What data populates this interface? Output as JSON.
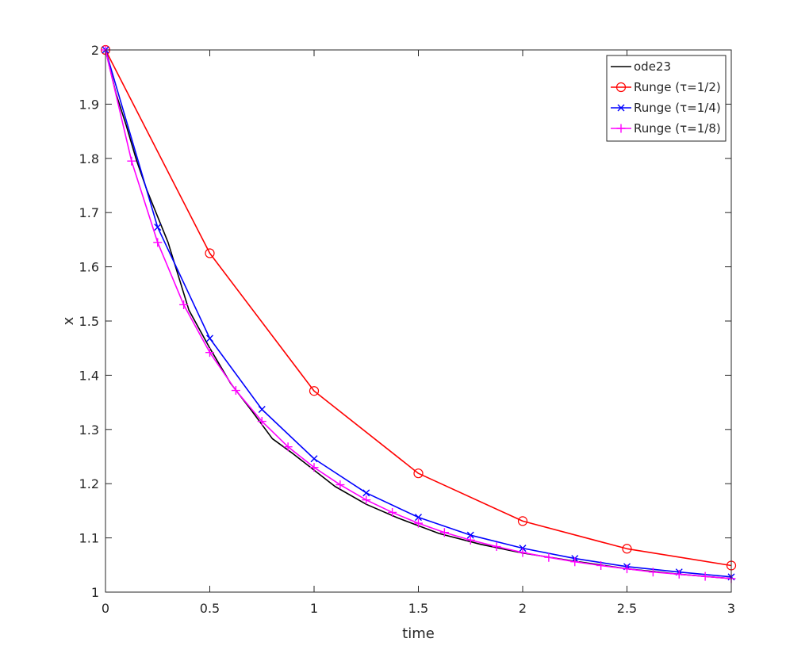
{
  "chart_data": {
    "type": "line",
    "title": "",
    "xlabel": "time",
    "ylabel": "x",
    "xlim": [
      0,
      3
    ],
    "ylim": [
      1,
      2
    ],
    "xticks": [
      0,
      0.5,
      1,
      1.5,
      2,
      2.5,
      3
    ],
    "xtick_labels": [
      "0",
      "0.5",
      "1",
      "1.5",
      "2",
      "2.5",
      "3"
    ],
    "yticks": [
      1,
      1.1,
      1.2,
      1.3,
      1.4,
      1.5,
      1.6,
      1.7,
      1.8,
      1.9,
      2
    ],
    "ytick_labels": [
      "1",
      "1.1",
      "1.2",
      "1.3",
      "1.4",
      "1.5",
      "1.6",
      "1.7",
      "1.8",
      "1.9",
      "2"
    ],
    "grid": false,
    "box": true,
    "legend_position": "top-right",
    "series": [
      {
        "name": "ode23",
        "color": "#000000",
        "marker": "none",
        "x": [
          0,
          0.05,
          0.1,
          0.15,
          0.2,
          0.3,
          0.4,
          0.5,
          0.6,
          0.7,
          0.8,
          0.9,
          1.0,
          1.1,
          1.25,
          1.4,
          1.6,
          1.8,
          2.0,
          2.25,
          2.5,
          2.75,
          3.0
        ],
        "values": [
          2.0,
          1.92,
          1.86,
          1.795,
          1.74,
          1.645,
          1.52,
          1.45,
          1.385,
          1.335,
          1.283,
          1.255,
          1.225,
          1.195,
          1.162,
          1.137,
          1.108,
          1.088,
          1.072,
          1.057,
          1.043,
          1.033,
          1.025
        ]
      },
      {
        "name": "Runge (τ=1/2)",
        "color": "#ff0000",
        "marker": "circle",
        "x": [
          0,
          0.5,
          1.0,
          1.5,
          2.0,
          2.5,
          3.0
        ],
        "values": [
          2.0,
          1.625,
          1.371,
          1.219,
          1.131,
          1.08,
          1.049
        ]
      },
      {
        "name": "Runge (τ=1/4)",
        "color": "#0000ff",
        "marker": "x",
        "x": [
          0,
          0.25,
          0.5,
          0.75,
          1.0,
          1.25,
          1.5,
          1.75,
          2.0,
          2.25,
          2.5,
          2.75,
          3.0
        ],
        "values": [
          2.0,
          1.673,
          1.468,
          1.337,
          1.246,
          1.183,
          1.138,
          1.105,
          1.081,
          1.062,
          1.047,
          1.037,
          1.028
        ]
      },
      {
        "name": "Runge (τ=1/8)",
        "color": "#ff00ff",
        "marker": "plus",
        "x": [
          0,
          0.125,
          0.25,
          0.375,
          0.5,
          0.625,
          0.75,
          0.875,
          1.0,
          1.125,
          1.25,
          1.375,
          1.5,
          1.625,
          1.75,
          1.875,
          2.0,
          2.125,
          2.25,
          2.375,
          2.5,
          2.625,
          2.75,
          2.875,
          3.0
        ],
        "values": [
          2.0,
          1.795,
          1.645,
          1.53,
          1.442,
          1.372,
          1.315,
          1.268,
          1.23,
          1.198,
          1.17,
          1.147,
          1.127,
          1.11,
          1.096,
          1.084,
          1.073,
          1.064,
          1.056,
          1.049,
          1.043,
          1.037,
          1.033,
          1.029,
          1.025
        ]
      }
    ],
    "legend_entries": [
      "ode23",
      "Runge (τ=1/2)",
      "Runge (τ=1/4)",
      "Runge (τ=1/8)"
    ]
  }
}
